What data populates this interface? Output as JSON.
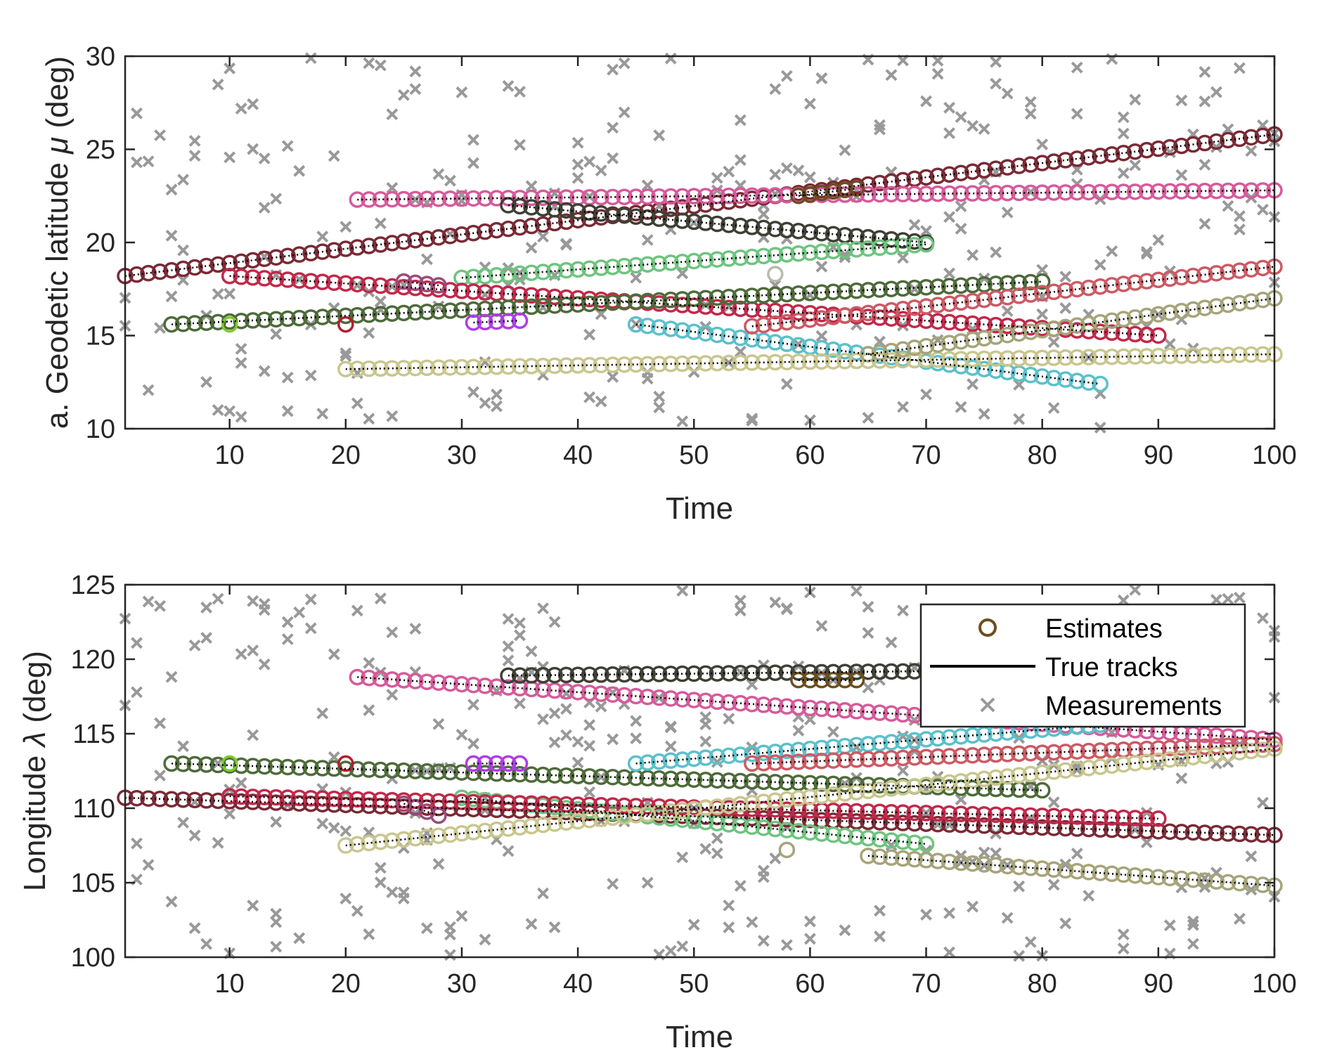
{
  "chart_data": [
    {
      "type": "scatter",
      "panel": "top",
      "xlabel": "Time",
      "ylabel_prefix": "a. Geodetic  latitude ",
      "ylabel_symbol": "μ",
      "ylabel_suffix": " (deg)",
      "xlim": [
        1,
        100
      ],
      "ylim": [
        10,
        30
      ],
      "xticks": [
        10,
        20,
        30,
        40,
        50,
        60,
        70,
        80,
        90,
        100
      ],
      "yticks": [
        10,
        15,
        20,
        25,
        30
      ],
      "xtick_labels": [
        "10",
        "20",
        "30",
        "40",
        "50",
        "60",
        "70",
        "80",
        "90",
        "100"
      ],
      "ytick_labels": [
        "10",
        "15",
        "20",
        "25",
        "30"
      ],
      "tracks": [
        {
          "t0": 1,
          "t1": 100,
          "v0": 18.2,
          "v1": 25.8,
          "color": "#7a2a35"
        },
        {
          "t0": 21,
          "t1": 100,
          "v0": 22.3,
          "v1": 22.8,
          "color": "#d65a9a"
        },
        {
          "t0": 34,
          "t1": 70,
          "v0": 22.0,
          "v1": 20.0,
          "color": "#3f3f34"
        },
        {
          "t0": 59,
          "t1": 64,
          "v0": 22.5,
          "v1": 22.9,
          "color": "#6b4e1f"
        },
        {
          "t0": 30,
          "t1": 70,
          "v0": 18.1,
          "v1": 19.9,
          "color": "#6ec47f"
        },
        {
          "t0": 10,
          "t1": 90,
          "v0": 18.2,
          "v1": 15.0,
          "color": "#c2284a"
        },
        {
          "t0": 5,
          "t1": 80,
          "v0": 15.6,
          "v1": 17.9,
          "color": "#4e6b3a"
        },
        {
          "t0": 25,
          "t1": 28,
          "v0": 17.9,
          "v1": 17.7,
          "color": "#9c4a7a"
        },
        {
          "t0": 31,
          "t1": 35,
          "v0": 15.7,
          "v1": 15.8,
          "color": "#b03ce6"
        },
        {
          "t0": 45,
          "t1": 85,
          "v0": 15.6,
          "v1": 12.4,
          "color": "#5bc0cb"
        },
        {
          "t0": 55,
          "t1": 100,
          "v0": 15.5,
          "v1": 18.7,
          "color": "#cc5a64"
        },
        {
          "t0": 20,
          "t1": 100,
          "v0": 13.2,
          "v1": 14.0,
          "color": "#c9c68e"
        },
        {
          "t0": 65,
          "t1": 100,
          "v0": 14.0,
          "v1": 17.0,
          "color": "#a6a47a"
        }
      ],
      "single_estimates": [
        {
          "t": 10,
          "v": 15.6,
          "color": "#7ecb2c"
        },
        {
          "t": 20,
          "v": 15.6,
          "color": "#b01e2e"
        },
        {
          "t": 57,
          "v": 18.3,
          "color": "#b9b9b0"
        }
      ],
      "measurement_seed": 11
    },
    {
      "type": "scatter",
      "panel": "bottom",
      "xlabel": "Time",
      "ylabel_prefix": "Longitude ",
      "ylabel_symbol": "λ",
      "ylabel_suffix": " (deg)",
      "xlim": [
        1,
        100
      ],
      "ylim": [
        100,
        125
      ],
      "xticks": [
        10,
        20,
        30,
        40,
        50,
        60,
        70,
        80,
        90,
        100
      ],
      "yticks": [
        100,
        105,
        110,
        115,
        120,
        125
      ],
      "xtick_labels": [
        "10",
        "20",
        "30",
        "40",
        "50",
        "60",
        "70",
        "80",
        "90",
        "100"
      ],
      "ytick_labels": [
        "100",
        "105",
        "110",
        "115",
        "120",
        "125"
      ],
      "tracks": [
        {
          "t0": 1,
          "t1": 100,
          "v0": 110.7,
          "v1": 108.2,
          "color": "#7a2a35"
        },
        {
          "t0": 21,
          "t1": 100,
          "v0": 118.8,
          "v1": 114.6,
          "color": "#d65a9a"
        },
        {
          "t0": 34,
          "t1": 70,
          "v0": 118.9,
          "v1": 119.2,
          "color": "#3f3f34"
        },
        {
          "t0": 59,
          "t1": 64,
          "v0": 118.6,
          "v1": 118.6,
          "color": "#6b4e1f"
        },
        {
          "t0": 30,
          "t1": 70,
          "v0": 110.7,
          "v1": 107.6,
          "color": "#6ec47f"
        },
        {
          "t0": 10,
          "t1": 90,
          "v0": 110.8,
          "v1": 109.3,
          "color": "#c2284a"
        },
        {
          "t0": 5,
          "t1": 80,
          "v0": 113.0,
          "v1": 111.2,
          "color": "#4e6b3a"
        },
        {
          "t0": 25,
          "t1": 28,
          "v0": 110.3,
          "v1": 109.5,
          "color": "#9c4a7a"
        },
        {
          "t0": 31,
          "t1": 35,
          "v0": 113.0,
          "v1": 113.0,
          "color": "#b03ce6"
        },
        {
          "t0": 45,
          "t1": 85,
          "v0": 113.0,
          "v1": 115.6,
          "color": "#5bc0cb"
        },
        {
          "t0": 55,
          "t1": 100,
          "v0": 113.0,
          "v1": 114.3,
          "color": "#cc5a64"
        },
        {
          "t0": 20,
          "t1": 100,
          "v0": 107.5,
          "v1": 114.0,
          "color": "#c9c68e"
        },
        {
          "t0": 65,
          "t1": 100,
          "v0": 106.8,
          "v1": 104.8,
          "color": "#a6a47a"
        }
      ],
      "single_estimates": [
        {
          "t": 10,
          "v": 113.0,
          "color": "#7ecb2c"
        },
        {
          "t": 20,
          "v": 113.0,
          "color": "#b01e2e"
        },
        {
          "t": 58,
          "v": 107.2,
          "color": "#a6a47a"
        }
      ],
      "legend": {
        "placement": "top-right",
        "estimates_label": "Estimates",
        "true_tracks_label": "True tracks",
        "measurements_label": "Measurements",
        "estimate_color": "#6b4e1f",
        "true_track_color": "#000000",
        "measurement_color": "#999999"
      },
      "measurement_seed": 29
    }
  ]
}
